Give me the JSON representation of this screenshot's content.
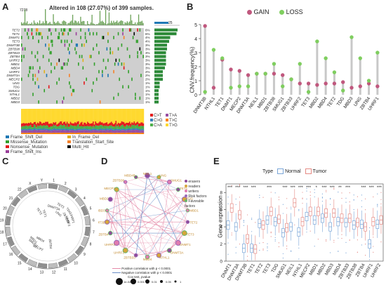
{
  "panels": {
    "a": {
      "letter": "A",
      "title": "Altered in 108 (27.07%) of 399 samples.",
      "top_max": "7278",
      "bar_max": "25",
      "genes": [
        "TET2",
        "TET1",
        "DNMT1",
        "TET3",
        "DNMT3B",
        "ZBTB38",
        "ZBTB33",
        "ZBTB4",
        "UHRF2",
        "MBD1",
        "MBD4",
        "UHRF1",
        "DNMT3A",
        "MECP2",
        "UNG",
        "TDG",
        "SMUG1",
        "NTHL1",
        "MBD2",
        "MBD3"
      ],
      "pcts": [
        "6%",
        "6%",
        "4%",
        "4%",
        "3%",
        "3%",
        "3%",
        "3%",
        "3%",
        "3%",
        "3%",
        "2%",
        "2%",
        "2%",
        "1%",
        "1%",
        "1%",
        "1%",
        "1%",
        "1%"
      ],
      "bar_values": [
        22,
        21,
        15,
        14,
        12,
        12,
        11,
        11,
        11,
        11,
        10,
        8,
        8,
        8,
        5,
        5,
        4,
        4,
        4,
        4
      ],
      "variant_legend": [
        "Frame_Shift_Del",
        "Missense_Mutation",
        "Nonsense_Mutation",
        "Frame_Shift_Ins",
        "In_Frame_Del",
        "Translation_Start_Site",
        "Multi_Hit"
      ],
      "variant_colors": [
        "#1f78b4",
        "#33a02c",
        "#e31a1c",
        "#9a3f9a",
        "#e3b21a",
        "#f5822b",
        "#000000"
      ],
      "titv_legend": [
        "C>T",
        "C>G",
        "C>A",
        "T>A",
        "T>C",
        "T>G"
      ],
      "titv_colors": [
        "#e41a1c",
        "#377eb8",
        "#4daf4a",
        "#984ea3",
        "#ff7f00",
        "#ffd92f"
      ]
    },
    "b": {
      "letter": "B",
      "ylabel": "CNV.frequency(%)",
      "legend": [
        "GAIN",
        "LOSS"
      ],
      "gain_color": "#c0587e",
      "loss_color": "#7fce5f"
    },
    "c": {
      "letter": "C",
      "chroms": [
        "1",
        "2",
        "3",
        "4",
        "5",
        "6",
        "7",
        "8",
        "9",
        "10",
        "11",
        "12",
        "13",
        "14",
        "15",
        "16",
        "17",
        "18",
        "19",
        "20",
        "21",
        "22",
        "X",
        "Y"
      ],
      "labels": [
        "MBD4",
        "ZBTB38",
        "TET2",
        "UHRF2",
        "MBD1",
        "UHRF1",
        "SMUG1",
        "TET1",
        "TDG",
        "UNG",
        "ZBTB4",
        "TET3",
        "DNMT3A",
        "MECP2"
      ]
    },
    "d": {
      "letter": "D",
      "nodes": [
        "NEIL1",
        "UNG",
        "SMUG1",
        "TET1",
        "TDG",
        "MBD1",
        "TET2",
        "TET3",
        "DNMT1",
        "DNMT3A",
        "NTHL1",
        "MBD4",
        "ZBTB33",
        "UHRF1",
        "UHRF2",
        "ZBTB4",
        "DNMT3B",
        "MBD3",
        "MBD2",
        "MECP2",
        "ZBTB38",
        "MBD4B"
      ],
      "legend": [
        "erasers",
        "readers",
        "writers",
        "Risk factors",
        "Favorable factors"
      ],
      "legend_colors": [
        "#8e4a9a",
        "#d6a63a",
        "#e07bb0",
        "#9b6bb8",
        "#6cb36c"
      ],
      "corr_pos": "Positive correlation with p < 0.0001",
      "corr_neg": "Negative correlation with p < 0.0001",
      "pvalue_title": "Cox test, pvalue",
      "pvalue_ticks": [
        "1e-04",
        "0.001",
        "0.01",
        "0.05",
        "1"
      ]
    },
    "e": {
      "letter": "E",
      "legend_title": "Type",
      "legend": [
        "Normal",
        "Tumor"
      ],
      "ylabel": "Gene expression",
      "yticks": [
        "0",
        "2",
        "4",
        "6",
        "8"
      ],
      "genes": [
        "DNMT1",
        "DNMT3A",
        "DNMT3B",
        "TET1",
        "TET2",
        "TET3",
        "TDG",
        "SMUG1",
        "NEIL1",
        "NTHL1",
        "MECP2",
        "MBD1",
        "MBD2",
        "MBD3",
        "MBD4",
        "ZBTB33",
        "ZBTB38",
        "ZBTB4",
        "UHRF1",
        "UHRF2"
      ],
      "stars": [
        "***",
        "***",
        "***",
        "***",
        "",
        "***",
        "",
        "***",
        "***",
        "***",
        "***",
        "*",
        "***",
        "***",
        "**",
        "***",
        "",
        "***",
        "***",
        "***"
      ]
    }
  },
  "chart_data": [
    {
      "type": "bar",
      "title": "Altered in 108 (27.07%) of 399 samples.",
      "categories": [
        "TET2",
        "TET1",
        "DNMT1",
        "TET3",
        "DNMT3B",
        "ZBTB38",
        "ZBTB33",
        "ZBTB4",
        "UHRF2",
        "MBD1",
        "MBD4",
        "UHRF1",
        "DNMT3A",
        "MECP2",
        "UNG",
        "TDG",
        "SMUG1",
        "NTHL1",
        "MBD2",
        "MBD3"
      ],
      "values": [
        6,
        6,
        4,
        4,
        3,
        3,
        3,
        3,
        3,
        3,
        3,
        2,
        2,
        2,
        1,
        1,
        1,
        1,
        1,
        1
      ],
      "ylabel": "%"
    },
    {
      "type": "scatter",
      "ylabel": "CNV.frequency(%)",
      "ylim": [
        0,
        5
      ],
      "categories": [
        "DNMT3B",
        "NTHL1",
        "TET1",
        "DNMT1",
        "MECP2",
        "DNMT3A",
        "NEIL1",
        "MBD1",
        "ZBTB38",
        "SMUG1",
        "ZBTB33",
        "UHRF2",
        "TET3",
        "MBD2",
        "MBD4",
        "TET2",
        "TDG",
        "MBD3",
        "UNG",
        "ZBTB4",
        "UHRF1"
      ],
      "series": [
        {
          "name": "GAIN",
          "values": [
            4.9,
            0.5,
            2.5,
            1.8,
            1.7,
            1.4,
            1.5,
            1.5,
            1.5,
            1.4,
            1.1,
            0.8,
            0.8,
            0.7,
            0.8,
            0.8,
            0.9,
            0.5,
            0.6,
            0.8,
            0.6
          ]
        },
        {
          "name": "LOSS",
          "values": [
            0.2,
            3.2,
            2.6,
            0.5,
            0.6,
            0.6,
            1.5,
            1.5,
            2.2,
            0.6,
            1.1,
            2.2,
            0.2,
            3.8,
            2.6,
            1.6,
            0.3,
            4.1,
            2.6,
            1.0,
            3.0
          ]
        }
      ]
    },
    {
      "type": "box",
      "ylabel": "Gene expression",
      "ylim": [
        0,
        9
      ],
      "categories": [
        "DNMT1",
        "DNMT3A",
        "DNMT3B",
        "TET1",
        "TET2",
        "TET3",
        "TDG",
        "SMUG1",
        "NEIL1",
        "NTHL1",
        "MECP2",
        "MBD1",
        "MBD2",
        "MBD3",
        "MBD4",
        "ZBTB33",
        "ZBTB38",
        "ZBTB4",
        "UHRF1",
        "UHRF2"
      ],
      "series": [
        {
          "name": "Normal",
          "values": [
            4.2,
            4.0,
            1.5,
            1.5,
            4.4,
            4.8,
            4.6,
            3.3,
            4.0,
            3.4,
            5.2,
            4.8,
            5.0,
            4.0,
            4.6,
            4.5,
            4.2,
            4.3,
            2.0,
            4.3
          ]
        },
        {
          "name": "Tumor",
          "values": [
            6.2,
            5.4,
            2.6,
            1.4,
            4.2,
            5.8,
            4.9,
            3.9,
            6.8,
            4.6,
            5.8,
            5.8,
            5.6,
            5.6,
            5.0,
            5.0,
            4.5,
            4.0,
            4.6,
            4.8
          ]
        }
      ]
    }
  ]
}
